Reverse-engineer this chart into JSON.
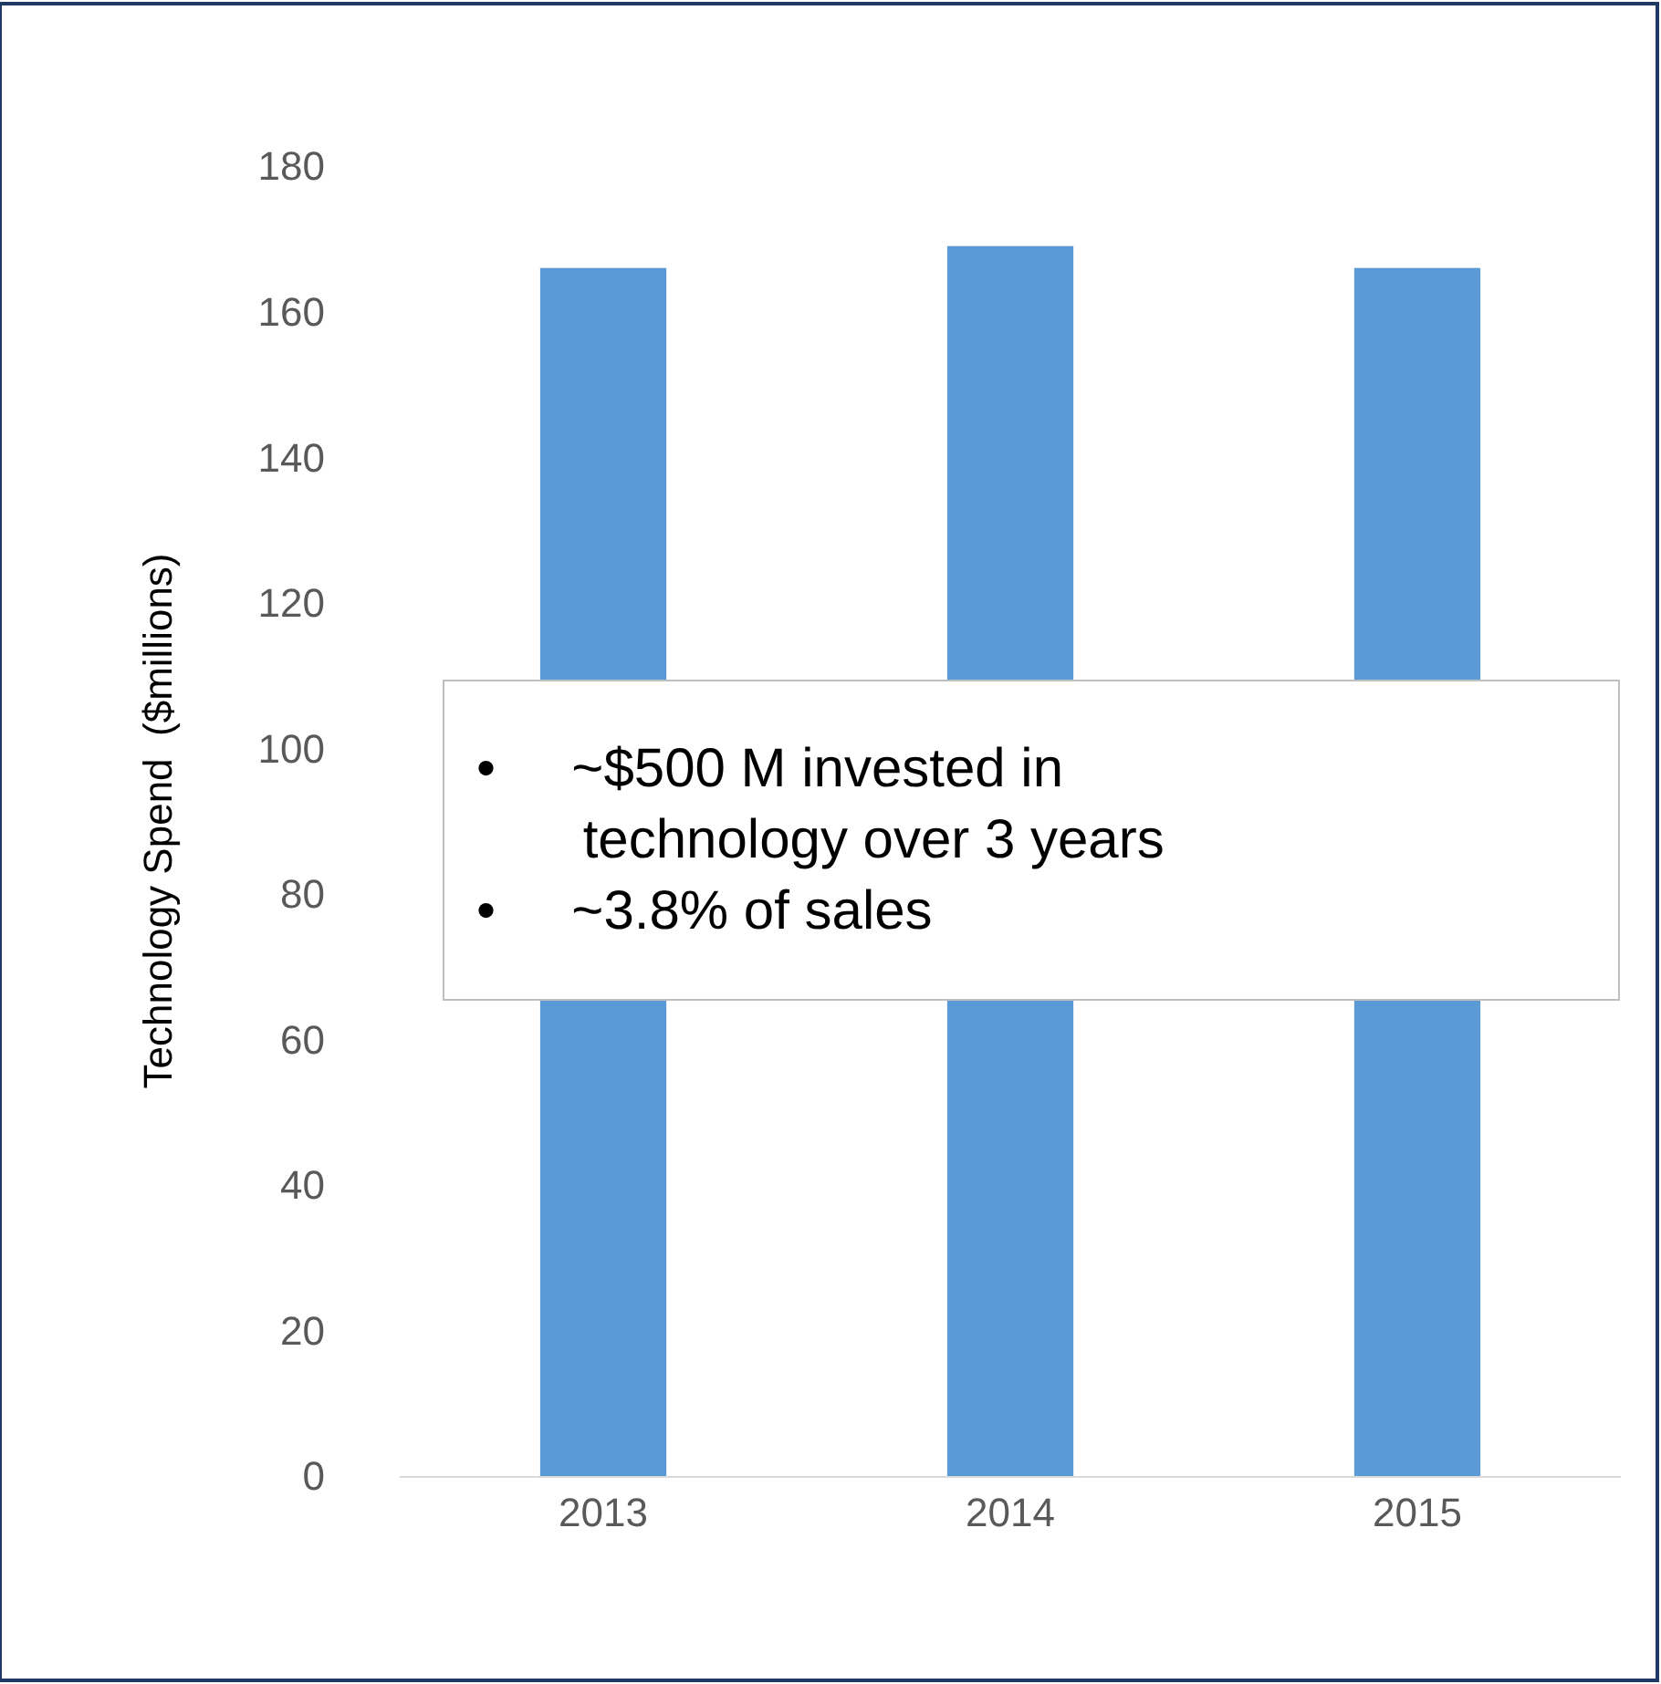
{
  "chart_data": {
    "type": "bar",
    "ylabel": "Technology Spend  ($millions)",
    "categories": [
      "2013",
      "2014",
      "2015"
    ],
    "values": [
      166,
      169,
      166
    ],
    "color": "#5b9bd5",
    "ylim": [
      0,
      180
    ],
    "yticks": [
      0,
      20,
      40,
      60,
      80,
      100,
      120,
      140,
      160,
      180
    ],
    "grid": false,
    "legend": false,
    "annotations": [
      "• ~$500 M invested in technology over 3 years",
      "• ~3.8% of sales"
    ]
  }
}
